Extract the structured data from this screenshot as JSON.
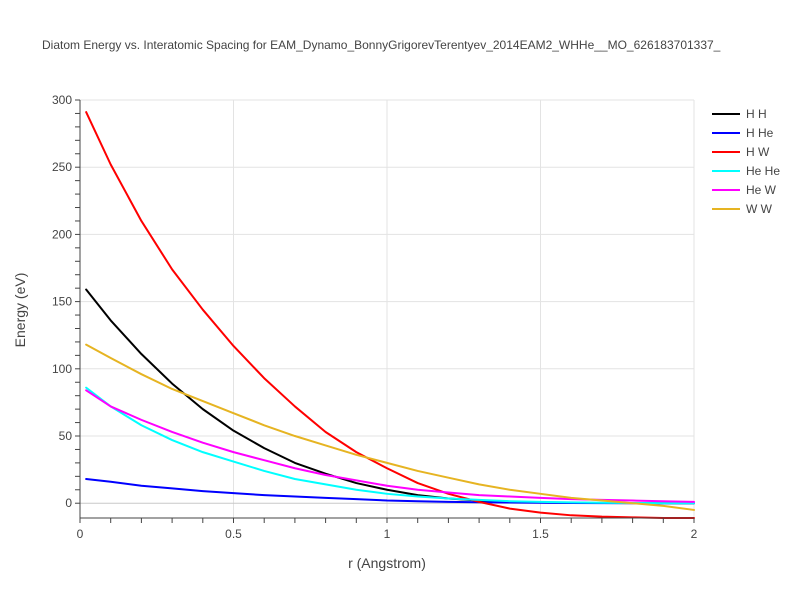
{
  "chart_data": {
    "type": "line",
    "title": "Diatom Energy vs. Interatomic Spacing for EAM_Dynamo_BonnyGrigorevTerentyev_2014EAM2_WHHe__MO_626183701337_",
    "xlabel": "r (Angstrom)",
    "ylabel": "Energy (eV)",
    "xlim": [
      0,
      2
    ],
    "ylim": [
      -11,
      300
    ],
    "xticks": [
      0,
      0.5,
      1,
      1.5,
      2
    ],
    "xtick_labels": [
      "0",
      "0.5",
      "1",
      "1.5",
      "2"
    ],
    "yticks": [
      0,
      50,
      100,
      150,
      200,
      250,
      300
    ],
    "ytick_labels": [
      "0",
      "50",
      "100",
      "150",
      "200",
      "250",
      "300"
    ],
    "grid": true,
    "legend_position": "top-right",
    "series": [
      {
        "name": "H H",
        "color": "#000000",
        "x": [
          0.02,
          0.1,
          0.2,
          0.3,
          0.4,
          0.5,
          0.6,
          0.7,
          0.8,
          0.9,
          1.0,
          1.1,
          1.2,
          1.3,
          1.4,
          1.5,
          1.6,
          1.7,
          1.8,
          1.9,
          2.0
        ],
        "y": [
          159,
          136,
          111,
          89,
          70,
          54,
          41,
          30,
          22,
          15,
          10,
          6,
          3.5,
          2,
          1,
          0.5,
          0.3,
          0.2,
          0.1,
          0.05,
          0
        ]
      },
      {
        "name": "H He",
        "color": "#0000ff",
        "x": [
          0.02,
          0.1,
          0.2,
          0.3,
          0.4,
          0.5,
          0.6,
          0.7,
          0.8,
          0.9,
          1.0,
          1.1,
          1.2,
          1.3,
          1.4,
          1.5,
          1.6,
          1.7,
          1.8,
          1.9,
          2.0
        ],
        "y": [
          18,
          16,
          13,
          11,
          9,
          7.5,
          6,
          5,
          4,
          3,
          2,
          1.5,
          1,
          0.7,
          0.5,
          0.3,
          0.2,
          0.1,
          0.05,
          0.02,
          0
        ]
      },
      {
        "name": "H W",
        "color": "#ff0000",
        "x": [
          0.02,
          0.1,
          0.2,
          0.3,
          0.4,
          0.5,
          0.6,
          0.7,
          0.8,
          0.9,
          1.0,
          1.1,
          1.2,
          1.3,
          1.4,
          1.5,
          1.6,
          1.7,
          1.8,
          1.9,
          2.0
        ],
        "y": [
          291,
          252,
          210,
          174,
          144,
          117,
          93,
          72,
          53,
          38,
          26,
          15,
          7,
          1,
          -4,
          -7,
          -9,
          -10,
          -10.5,
          -11,
          -11
        ]
      },
      {
        "name": "He He",
        "color": "#00ffff",
        "x": [
          0.02,
          0.1,
          0.2,
          0.3,
          0.4,
          0.5,
          0.6,
          0.7,
          0.8,
          0.9,
          1.0,
          1.1,
          1.2,
          1.3,
          1.4,
          1.5,
          1.6,
          1.7,
          1.8,
          1.9,
          2.0
        ],
        "y": [
          86,
          72,
          58,
          47,
          38,
          31,
          24,
          18,
          14,
          10,
          7,
          5,
          3.5,
          2.5,
          1.5,
          1,
          0.6,
          0.3,
          0.2,
          0.1,
          0
        ]
      },
      {
        "name": "He W",
        "color": "#ff00ff",
        "x": [
          0.02,
          0.1,
          0.2,
          0.3,
          0.4,
          0.5,
          0.6,
          0.7,
          0.8,
          0.9,
          1.0,
          1.1,
          1.2,
          1.3,
          1.4,
          1.5,
          1.6,
          1.7,
          1.8,
          1.9,
          2.0
        ],
        "y": [
          84,
          72,
          62,
          53,
          45,
          38,
          32,
          26,
          21,
          17,
          13,
          10,
          8,
          6,
          5,
          4,
          3,
          2.5,
          2,
          1.5,
          1
        ]
      },
      {
        "name": "W W",
        "color": "#e6b422",
        "x": [
          0.02,
          0.1,
          0.2,
          0.3,
          0.4,
          0.5,
          0.6,
          0.7,
          0.8,
          0.9,
          1.0,
          1.1,
          1.2,
          1.3,
          1.4,
          1.5,
          1.6,
          1.7,
          1.8,
          1.9,
          2.0
        ],
        "y": [
          118,
          108,
          96,
          85,
          76,
          67,
          58,
          50,
          43,
          36,
          30,
          24,
          19,
          14,
          10,
          7,
          4,
          2,
          0,
          -2,
          -5
        ]
      }
    ]
  }
}
